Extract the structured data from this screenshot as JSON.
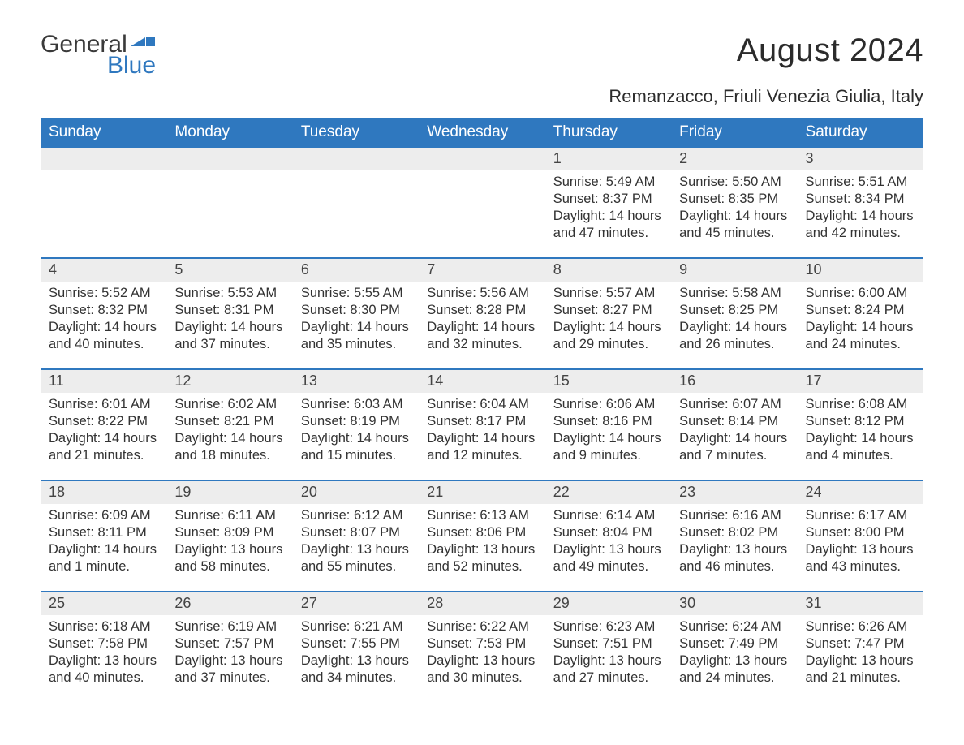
{
  "brand": {
    "word1": "General",
    "word2": "Blue",
    "word1_color": "#3a3a3a",
    "word2_color": "#2f78bf"
  },
  "title": "August 2024",
  "location": "Remanzacco, Friuli Venezia Giulia, Italy",
  "colors": {
    "header_bg": "#2f78bf",
    "header_text": "#ffffff",
    "daynum_bg": "#ededed",
    "daynum_border": "#2f78bf",
    "body_text": "#333333",
    "page_bg": "#ffffff"
  },
  "typography": {
    "title_fontsize": 40,
    "location_fontsize": 22,
    "header_fontsize": 19,
    "daynum_fontsize": 18,
    "cell_fontsize": 16.5
  },
  "weekdays": [
    "Sunday",
    "Monday",
    "Tuesday",
    "Wednesday",
    "Thursday",
    "Friday",
    "Saturday"
  ],
  "weeks": [
    {
      "nums": [
        "",
        "",
        "",
        "",
        "1",
        "2",
        "3"
      ],
      "cells": [
        "",
        "",
        "",
        "",
        "Sunrise: 5:49 AM\nSunset: 8:37 PM\nDaylight: 14 hours and 47 minutes.",
        "Sunrise: 5:50 AM\nSunset: 8:35 PM\nDaylight: 14 hours and 45 minutes.",
        "Sunrise: 5:51 AM\nSunset: 8:34 PM\nDaylight: 14 hours and 42 minutes."
      ]
    },
    {
      "nums": [
        "4",
        "5",
        "6",
        "7",
        "8",
        "9",
        "10"
      ],
      "cells": [
        "Sunrise: 5:52 AM\nSunset: 8:32 PM\nDaylight: 14 hours and 40 minutes.",
        "Sunrise: 5:53 AM\nSunset: 8:31 PM\nDaylight: 14 hours and 37 minutes.",
        "Sunrise: 5:55 AM\nSunset: 8:30 PM\nDaylight: 14 hours and 35 minutes.",
        "Sunrise: 5:56 AM\nSunset: 8:28 PM\nDaylight: 14 hours and 32 minutes.",
        "Sunrise: 5:57 AM\nSunset: 8:27 PM\nDaylight: 14 hours and 29 minutes.",
        "Sunrise: 5:58 AM\nSunset: 8:25 PM\nDaylight: 14 hours and 26 minutes.",
        "Sunrise: 6:00 AM\nSunset: 8:24 PM\nDaylight: 14 hours and 24 minutes."
      ]
    },
    {
      "nums": [
        "11",
        "12",
        "13",
        "14",
        "15",
        "16",
        "17"
      ],
      "cells": [
        "Sunrise: 6:01 AM\nSunset: 8:22 PM\nDaylight: 14 hours and 21 minutes.",
        "Sunrise: 6:02 AM\nSunset: 8:21 PM\nDaylight: 14 hours and 18 minutes.",
        "Sunrise: 6:03 AM\nSunset: 8:19 PM\nDaylight: 14 hours and 15 minutes.",
        "Sunrise: 6:04 AM\nSunset: 8:17 PM\nDaylight: 14 hours and 12 minutes.",
        "Sunrise: 6:06 AM\nSunset: 8:16 PM\nDaylight: 14 hours and 9 minutes.",
        "Sunrise: 6:07 AM\nSunset: 8:14 PM\nDaylight: 14 hours and 7 minutes.",
        "Sunrise: 6:08 AM\nSunset: 8:12 PM\nDaylight: 14 hours and 4 minutes."
      ]
    },
    {
      "nums": [
        "18",
        "19",
        "20",
        "21",
        "22",
        "23",
        "24"
      ],
      "cells": [
        "Sunrise: 6:09 AM\nSunset: 8:11 PM\nDaylight: 14 hours and 1 minute.",
        "Sunrise: 6:11 AM\nSunset: 8:09 PM\nDaylight: 13 hours and 58 minutes.",
        "Sunrise: 6:12 AM\nSunset: 8:07 PM\nDaylight: 13 hours and 55 minutes.",
        "Sunrise: 6:13 AM\nSunset: 8:06 PM\nDaylight: 13 hours and 52 minutes.",
        "Sunrise: 6:14 AM\nSunset: 8:04 PM\nDaylight: 13 hours and 49 minutes.",
        "Sunrise: 6:16 AM\nSunset: 8:02 PM\nDaylight: 13 hours and 46 minutes.",
        "Sunrise: 6:17 AM\nSunset: 8:00 PM\nDaylight: 13 hours and 43 minutes."
      ]
    },
    {
      "nums": [
        "25",
        "26",
        "27",
        "28",
        "29",
        "30",
        "31"
      ],
      "cells": [
        "Sunrise: 6:18 AM\nSunset: 7:58 PM\nDaylight: 13 hours and 40 minutes.",
        "Sunrise: 6:19 AM\nSunset: 7:57 PM\nDaylight: 13 hours and 37 minutes.",
        "Sunrise: 6:21 AM\nSunset: 7:55 PM\nDaylight: 13 hours and 34 minutes.",
        "Sunrise: 6:22 AM\nSunset: 7:53 PM\nDaylight: 13 hours and 30 minutes.",
        "Sunrise: 6:23 AM\nSunset: 7:51 PM\nDaylight: 13 hours and 27 minutes.",
        "Sunrise: 6:24 AM\nSunset: 7:49 PM\nDaylight: 13 hours and 24 minutes.",
        "Sunrise: 6:26 AM\nSunset: 7:47 PM\nDaylight: 13 hours and 21 minutes."
      ]
    }
  ]
}
